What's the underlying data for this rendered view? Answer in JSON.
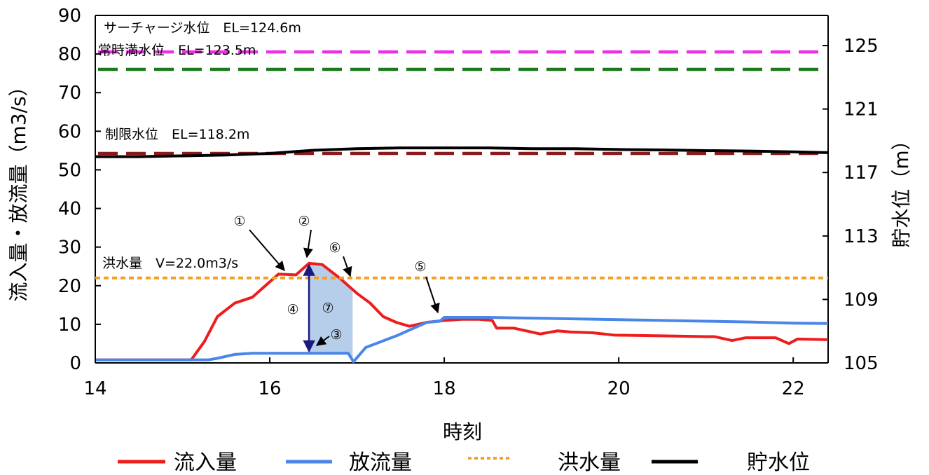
{
  "chart_data": {
    "type": "line",
    "xlabel": "時刻",
    "ylabel_left": "流入量・放流量（m3/s）",
    "ylabel_right": "貯水位（m）",
    "xlim": [
      14,
      22.4
    ],
    "ylim_left": [
      0,
      90
    ],
    "ylim_right": [
      105,
      126.9
    ],
    "x_ticks": [
      "14",
      "16",
      "18",
      "20",
      "22"
    ],
    "y_left_ticks": [
      "0",
      "10",
      "20",
      "30",
      "40",
      "50",
      "60",
      "70",
      "80",
      "90"
    ],
    "y_right_ticks": [
      "105",
      "109",
      "113",
      "117",
      "121",
      "125"
    ],
    "grid": false,
    "legend_position": "bottom",
    "colors": {
      "inflow": "#ee1c1c",
      "outflow": "#4a86e8",
      "flood": "#f5a020",
      "level": "#000000",
      "surcharge": "#ee2ee8",
      "normal_full": "#1a7a1a",
      "limit": "#8b1a1a",
      "shade": "#a9c6e6",
      "arrow_dark": "#1a1a80"
    },
    "series": [
      {
        "name": "流入量",
        "key": "inflow",
        "axis": "left",
        "x": [
          14,
          14.5,
          15.0,
          15.1,
          15.25,
          15.4,
          15.6,
          15.8,
          16.0,
          16.1,
          16.3,
          16.45,
          16.6,
          16.8,
          17.0,
          17.15,
          17.3,
          17.45,
          17.6,
          17.8,
          18.0,
          18.2,
          18.4,
          18.55,
          18.6,
          18.7,
          18.8,
          19.0,
          19.1,
          19.3,
          19.45,
          19.7,
          19.95,
          20.5,
          21.0,
          21.1,
          21.3,
          21.45,
          21.8,
          21.95,
          22.05,
          22.4
        ],
        "values": [
          0.8,
          0.8,
          0.8,
          0.8,
          5.5,
          12,
          15.5,
          17,
          21,
          23,
          22.8,
          25.8,
          25.5,
          22,
          18,
          15.5,
          12,
          10.5,
          9.5,
          10.5,
          11,
          11.3,
          11.3,
          11,
          9,
          9,
          9,
          8,
          7.5,
          8.3,
          8,
          7.8,
          7.2,
          7,
          6.8,
          6.8,
          5.8,
          6.5,
          6.5,
          5,
          6.2,
          6
        ]
      },
      {
        "name": "放流量",
        "key": "outflow",
        "axis": "left",
        "x": [
          14,
          15.0,
          15.3,
          15.4,
          15.6,
          15.8,
          16.45,
          16.9,
          16.96,
          17.1,
          17.45,
          17.8,
          17.95,
          18.0,
          18.5,
          19.0,
          20.0,
          20.5,
          21.0,
          21.5,
          22.0,
          22.4
        ],
        "values": [
          0.8,
          0.8,
          0.8,
          1.2,
          2.2,
          2.5,
          2.5,
          2.5,
          0.3,
          4,
          7,
          10.5,
          10.8,
          11.8,
          11.8,
          11.6,
          11.2,
          11,
          10.8,
          10.6,
          10.3,
          10.2
        ]
      },
      {
        "name": "洪水量",
        "key": "flood",
        "axis": "left",
        "x": [
          14,
          22.4
        ],
        "values": [
          22,
          22
        ]
      },
      {
        "name": "貯水位",
        "key": "level",
        "axis": "right",
        "x": [
          14,
          14.5,
          15.0,
          15.5,
          16.0,
          16.5,
          17.0,
          17.5,
          18.0,
          18.5,
          19.0,
          19.5,
          20.0,
          20.5,
          21.0,
          21.5,
          22.0,
          22.4
        ],
        "values": [
          118.0,
          118.0,
          118.05,
          118.1,
          118.2,
          118.4,
          118.5,
          118.55,
          118.55,
          118.55,
          118.5,
          118.5,
          118.45,
          118.42,
          118.38,
          118.35,
          118.3,
          118.25
        ]
      }
    ],
    "reference_lines": [
      {
        "label": "サーチャージ水位　EL=124.6m",
        "key": "surcharge",
        "value": 124.6,
        "axis": "right"
      },
      {
        "label": "常時満水位　EL=123.5m",
        "key": "normal_full",
        "value": 123.5,
        "axis": "right"
      },
      {
        "label": "制限水位　EL=118.2m",
        "key": "limit",
        "value": 118.2,
        "axis": "right"
      }
    ],
    "flood_label": "洪水量　V=22.0m3/s",
    "markers": [
      "①",
      "②",
      "③",
      "④",
      "⑤",
      "⑥",
      "⑦"
    ],
    "legend": [
      {
        "label": "流入量",
        "key": "inflow",
        "style": "solid"
      },
      {
        "label": "放流量",
        "key": "outflow",
        "style": "solid"
      },
      {
        "label": "洪水量",
        "key": "flood",
        "style": "dotted"
      },
      {
        "label": "貯水位",
        "key": "level",
        "style": "solid"
      }
    ]
  }
}
